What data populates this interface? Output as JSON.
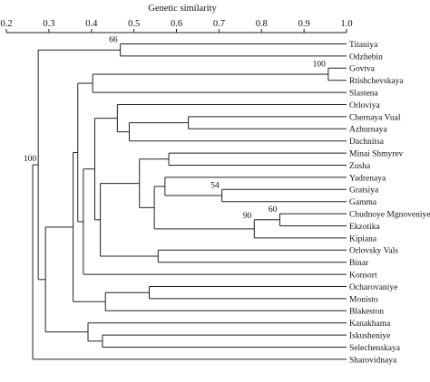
{
  "axis": {
    "title": "Genetic similarity",
    "min": 0.2,
    "max": 1.0,
    "ticks": [
      {
        "value": 0.2,
        "label": "0.2"
      },
      {
        "value": 0.3,
        "label": "0.3"
      },
      {
        "value": 0.4,
        "label": "0.4"
      },
      {
        "value": 0.5,
        "label": "0.5"
      },
      {
        "value": 0.6,
        "label": "0.6"
      },
      {
        "value": 0.7,
        "label": "0.7"
      },
      {
        "value": 0.8,
        "label": "0.8"
      },
      {
        "value": 0.9,
        "label": "0.9"
      },
      {
        "value": 1.0,
        "label": "1.0"
      }
    ]
  },
  "leaves": [
    "Titaniya",
    "Odzhebin",
    "Govtva",
    "Rtishchevskaya",
    "Slastena",
    "Orloviya",
    "Chernaya Vual",
    "Azhurnaya",
    "Dachnitsa",
    "Minai Shmyrev",
    "Zusha",
    "Yadrenaya",
    "Gratsiya",
    "Gamma",
    "Chudnoye Mgnoveniye",
    "Ekzotika",
    "Kipiana",
    "Orlovsky Vals",
    "Binar",
    "Konsort",
    "Ocharovaniye",
    "Monisto",
    "Blakeston",
    "Kanakhama",
    "Iskusheniye",
    "Selechenskaya",
    "Sharovidnaya"
  ],
  "clusters": [
    {
      "id": "n1",
      "children": [
        "L0",
        "L1"
      ],
      "similarity": 0.468,
      "label": "66"
    },
    {
      "id": "n2",
      "children": [
        "L2",
        "L3"
      ],
      "similarity": 0.957,
      "label": "100"
    },
    {
      "id": "n3",
      "children": [
        "n2",
        "L4"
      ],
      "similarity": 0.403
    },
    {
      "id": "n4",
      "children": [
        "L6",
        "L7"
      ],
      "similarity": 0.628
    },
    {
      "id": "n5",
      "children": [
        "n4",
        "L8"
      ],
      "similarity": 0.489
    },
    {
      "id": "n6",
      "children": [
        "L5",
        "n5"
      ],
      "similarity": 0.461
    },
    {
      "id": "n7",
      "children": [
        "L9",
        "L10"
      ],
      "similarity": 0.582
    },
    {
      "id": "n8",
      "children": [
        "L12",
        "L13"
      ],
      "similarity": 0.707,
      "label": "54"
    },
    {
      "id": "n9",
      "children": [
        "L11",
        "n8"
      ],
      "similarity": 0.573
    },
    {
      "id": "n10",
      "children": [
        "L14",
        "L15"
      ],
      "similarity": 0.843,
      "label": "60"
    },
    {
      "id": "n11",
      "children": [
        "n10",
        "L16"
      ],
      "similarity": 0.783,
      "label": "90"
    },
    {
      "id": "n12",
      "children": [
        "n9",
        "n11"
      ],
      "similarity": 0.548
    },
    {
      "id": "n13",
      "children": [
        "n7",
        "n12"
      ],
      "similarity": 0.513
    },
    {
      "id": "n14",
      "children": [
        "L17",
        "L18"
      ],
      "similarity": 0.557
    },
    {
      "id": "n15",
      "children": [
        "n13",
        "n14"
      ],
      "similarity": 0.421
    },
    {
      "id": "n16",
      "children": [
        "n6",
        "n15"
      ],
      "similarity": 0.408
    },
    {
      "id": "n17",
      "children": [
        "n16",
        "L19"
      ],
      "similarity": 0.381
    },
    {
      "id": "n18",
      "children": [
        "n3",
        "n17"
      ],
      "similarity": 0.368
    },
    {
      "id": "n19",
      "children": [
        "L20",
        "L21"
      ],
      "similarity": 0.536
    },
    {
      "id": "n20",
      "children": [
        "n19",
        "L22"
      ],
      "similarity": 0.433
    },
    {
      "id": "n21",
      "children": [
        "n18",
        "n20"
      ],
      "similarity": 0.357
    },
    {
      "id": "n22",
      "children": [
        "L24",
        "L25"
      ],
      "similarity": 0.426
    },
    {
      "id": "n23",
      "children": [
        "L23",
        "n22"
      ],
      "similarity": 0.392
    },
    {
      "id": "n24",
      "children": [
        "n21",
        "n23"
      ],
      "similarity": 0.292
    },
    {
      "id": "n25",
      "children": [
        "n1",
        "n24"
      ],
      "similarity": 0.275,
      "label": "100"
    },
    {
      "id": "n26",
      "children": [
        "n25",
        "L26"
      ],
      "similarity": 0.262
    }
  ],
  "colors": {
    "line": "#222222",
    "text": "#111111",
    "background": "#ffffff"
  }
}
